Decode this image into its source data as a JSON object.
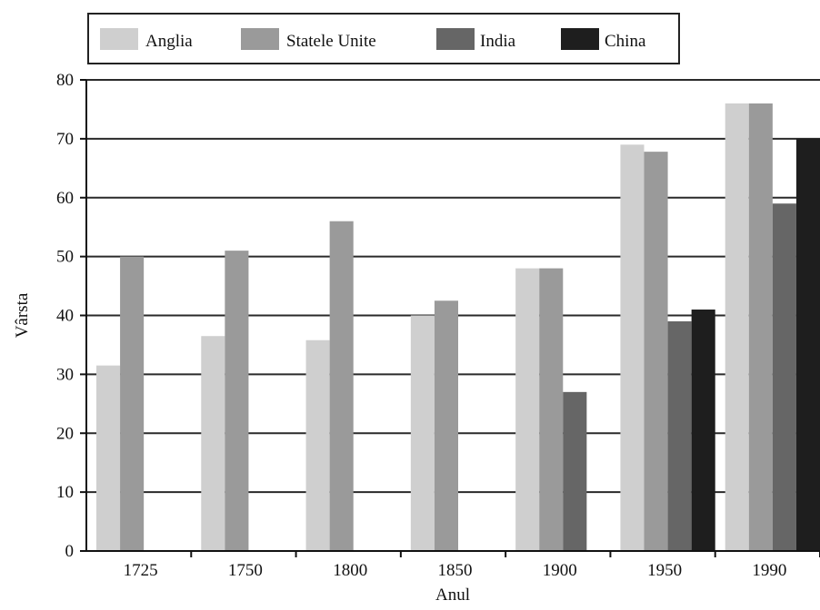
{
  "chart_data": {
    "type": "bar",
    "title": "",
    "xlabel": "Anul",
    "ylabel": "Vârsta",
    "ylim": [
      0,
      80
    ],
    "yticks": [
      0,
      10,
      20,
      30,
      40,
      50,
      60,
      70,
      80
    ],
    "grid": true,
    "legend_position": "top",
    "categories": [
      "1725",
      "1750",
      "1800",
      "1850",
      "1900",
      "1950",
      "1990"
    ],
    "series": [
      {
        "name": "Anglia",
        "color": "#cfcfcf",
        "values": [
          31.5,
          36.5,
          35.8,
          40,
          48,
          69,
          76
        ]
      },
      {
        "name": "Statele Unite",
        "color": "#9a9a9a",
        "values": [
          50,
          51,
          56,
          42.5,
          48,
          67.8,
          76
        ]
      },
      {
        "name": "India",
        "color": "#666666",
        "values": [
          null,
          null,
          null,
          null,
          27,
          39,
          59
        ]
      },
      {
        "name": "China",
        "color": "#1e1e1e",
        "values": [
          null,
          null,
          null,
          null,
          null,
          41,
          70
        ]
      }
    ]
  }
}
